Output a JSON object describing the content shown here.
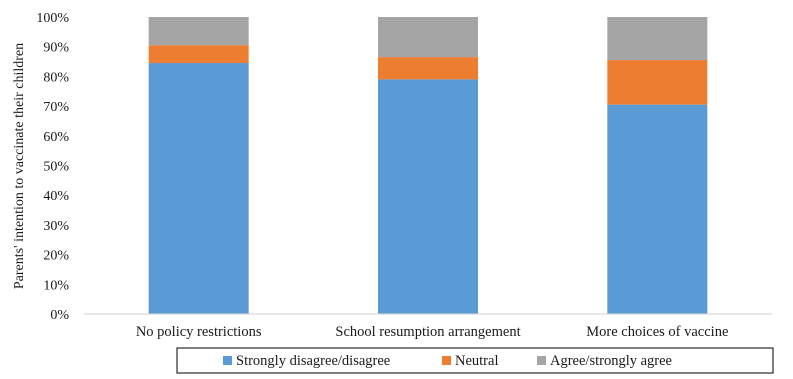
{
  "chart_data": {
    "type": "bar",
    "stacked": true,
    "percent_stacked": true,
    "title": "",
    "xlabel": "",
    "ylabel": "Parents' intention to vaccinate their children",
    "ylim": [
      0,
      100
    ],
    "y_ticks": [
      "0%",
      "10%",
      "20%",
      "30%",
      "40%",
      "50%",
      "60%",
      "70%",
      "80%",
      "90%",
      "100%"
    ],
    "categories": [
      "No policy restrictions",
      "School resumption arrangement",
      "More choices of vaccine"
    ],
    "series": [
      {
        "name": "Strongly disagree/disagree",
        "color": "#5B9BD5",
        "values": [
          84.5,
          79,
          70.5
        ]
      },
      {
        "name": "Neutral",
        "color": "#ED7D31",
        "values": [
          6,
          7.5,
          15
        ]
      },
      {
        "name": "Agree/strongly agree",
        "color": "#A5A5A5",
        "values": [
          9.5,
          13.5,
          14.5
        ]
      }
    ],
    "grid": false,
    "legend_position": "bottom"
  }
}
